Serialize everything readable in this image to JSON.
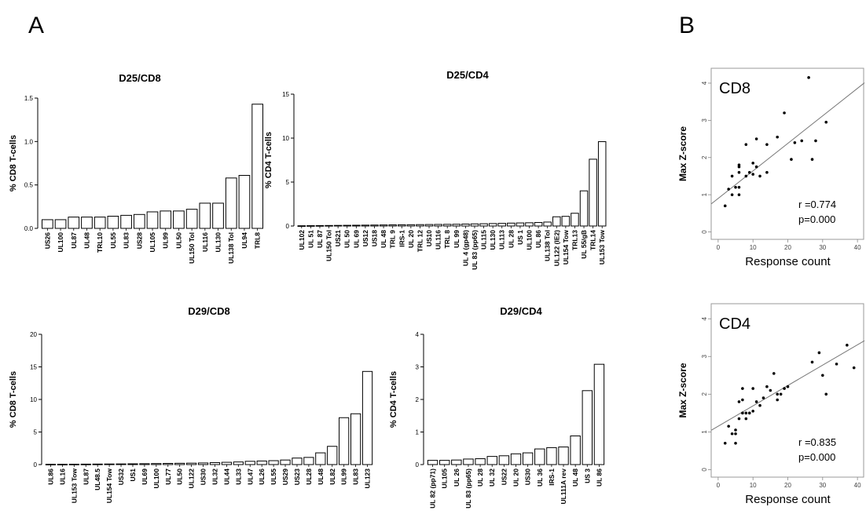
{
  "panels": {
    "a": "A",
    "b": "B"
  },
  "chart_data": [
    {
      "type": "bar",
      "title": "D25/CD8",
      "ylabel": "% CD8 T-cells",
      "xlabel": "",
      "ylim": [
        0,
        1.5
      ],
      "yticks": [
        "0.0",
        "0.5",
        "1.0",
        "1.5"
      ],
      "ytick_values": [
        0,
        0.5,
        1.0,
        1.5
      ],
      "categories": [
        "US26",
        "UL100",
        "UL87",
        "UL48",
        "TRL10",
        "UL55",
        "UL83",
        "US28",
        "UL105",
        "UL99",
        "UL50",
        "UL150 Tol",
        "UL116",
        "UL130",
        "UL138 Tol",
        "UL94",
        "TRL8"
      ],
      "values": [
        0.1,
        0.1,
        0.13,
        0.13,
        0.13,
        0.14,
        0.15,
        0.16,
        0.19,
        0.2,
        0.2,
        0.22,
        0.29,
        0.29,
        0.58,
        0.61,
        1.43
      ]
    },
    {
      "type": "bar",
      "title": "D25/CD4",
      "ylabel": "% CD4 T-cells",
      "xlabel": "",
      "ylim": [
        0,
        15
      ],
      "yticks": [
        "0",
        "5",
        "10",
        "15"
      ],
      "ytick_values": [
        0,
        5,
        10,
        15
      ],
      "categories": [
        "UL102",
        "UL 51",
        "UL 87",
        "UL150 Tol",
        "US21",
        "UL 50",
        "UL 69",
        "US12",
        "US18",
        "UL 48",
        "TRL 9",
        "IRS-1",
        "UL 20",
        "TRL 12",
        "US10",
        "UL116",
        "TRL 8",
        "UL 99",
        "UL 4 (gp48)",
        "UL 83 (pp65)",
        "UL115",
        "UL130",
        "UL113",
        "UL 28",
        "US 1",
        "UL100",
        "UL 86",
        "UL138 Tol",
        "UL122 (IE2)",
        "UL154 Tow",
        "TRL13",
        "UL 55/gB",
        "TRL14",
        "UL153 Tow"
      ],
      "values": [
        0.03,
        0.04,
        0.05,
        0.06,
        0.07,
        0.08,
        0.09,
        0.1,
        0.11,
        0.12,
        0.13,
        0.14,
        0.15,
        0.16,
        0.17,
        0.18,
        0.19,
        0.2,
        0.22,
        0.24,
        0.26,
        0.28,
        0.3,
        0.33,
        0.35,
        0.37,
        0.4,
        0.45,
        1.05,
        1.1,
        1.45,
        4.0,
        7.6,
        9.6
      ]
    },
    {
      "type": "bar",
      "title": "D29/CD8",
      "ylabel": "% CD8 T-cells",
      "xlabel": "",
      "ylim": [
        0,
        20
      ],
      "yticks": [
        "0",
        "5",
        "10",
        "15",
        "20"
      ],
      "ytick_values": [
        0,
        5,
        10,
        15,
        20
      ],
      "categories": [
        "UL86",
        "UL16",
        "UL153 Tow",
        "UL87",
        "UL48.5",
        "UL154 Tow",
        "US32",
        "US1",
        "UL69",
        "UL100",
        "UL77",
        "UL50",
        "UL122",
        "US30",
        "UL32",
        "UL44",
        "UL33",
        "UL47",
        "UL26",
        "UL55",
        "US29",
        "US23",
        "UL28",
        "UL48",
        "UL82",
        "UL99",
        "UL83",
        "UL123"
      ],
      "values": [
        0.05,
        0.05,
        0.06,
        0.07,
        0.08,
        0.09,
        0.1,
        0.12,
        0.14,
        0.16,
        0.18,
        0.2,
        0.22,
        0.25,
        0.3,
        0.35,
        0.4,
        0.5,
        0.55,
        0.6,
        0.7,
        1.0,
        1.1,
        1.8,
        2.8,
        7.2,
        7.8,
        14.3
      ]
    },
    {
      "type": "bar",
      "title": "D29/CD4",
      "ylabel": "% CD4 T-cells",
      "xlabel": "",
      "ylim": [
        0,
        4
      ],
      "yticks": [
        "0",
        "1",
        "2",
        "3",
        "4"
      ],
      "ytick_values": [
        0,
        1,
        2,
        3,
        4
      ],
      "categories": [
        "UL 82 (pp71)",
        "UL105",
        "UL 26",
        "UL 83 (pp65)",
        "UL 28",
        "UL 32",
        "US22",
        "UL 20",
        "US30",
        "UL 36",
        "IRS-1",
        "UL111A rev",
        "UL 48",
        "US 3",
        "UL 86"
      ],
      "values": [
        0.13,
        0.13,
        0.14,
        0.17,
        0.18,
        0.25,
        0.27,
        0.33,
        0.36,
        0.48,
        0.52,
        0.54,
        0.88,
        2.27,
        3.08
      ]
    },
    {
      "type": "scatter",
      "label": "CD8",
      "xlabel": "Response count",
      "ylabel": "Max Z-score",
      "xlim": [
        -2,
        42
      ],
      "ylim": [
        -0.2,
        4.4
      ],
      "xticks": [
        "0",
        "10",
        "20",
        "30",
        "40"
      ],
      "xtick_values": [
        0,
        10,
        20,
        30,
        40
      ],
      "yticks": [
        "0",
        "1",
        "2",
        "3",
        "4"
      ],
      "ytick_values": [
        0,
        1,
        2,
        3,
        4
      ],
      "r": "r =0.774",
      "p": "p=0.000",
      "fit": {
        "intercept": 0.9,
        "slope": 0.074
      },
      "x": [
        2,
        3,
        4,
        4,
        5,
        6,
        6,
        6,
        6,
        6,
        8,
        8,
        9,
        10,
        10,
        11,
        11,
        12,
        14,
        14,
        17,
        19,
        21,
        22,
        24,
        26,
        27,
        28,
        31
      ],
      "y": [
        0.7,
        1.15,
        1.0,
        1.5,
        1.2,
        1.75,
        1.8,
        1.6,
        1.2,
        1.0,
        1.5,
        2.35,
        1.6,
        1.85,
        1.55,
        2.5,
        1.75,
        1.5,
        2.35,
        1.6,
        2.55,
        3.2,
        1.95,
        2.4,
        2.45,
        4.15,
        1.95,
        2.45,
        2.95
      ]
    },
    {
      "type": "scatter",
      "label": "CD4",
      "xlabel": "Response count",
      "ylabel": "Max Z-score",
      "xlim": [
        -2,
        42
      ],
      "ylim": [
        -0.2,
        4.4
      ],
      "xticks": [
        "0",
        "10",
        "20",
        "30",
        "40"
      ],
      "xtick_values": [
        0,
        10,
        20,
        30,
        40
      ],
      "yticks": [
        "0",
        "1",
        "2",
        "3",
        "4"
      ],
      "ytick_values": [
        0,
        1,
        2,
        3,
        4
      ],
      "r": "r =0.835",
      "p": "p=0.000",
      "fit": {
        "intercept": 1.15,
        "slope": 0.054
      },
      "x": [
        2,
        3,
        4,
        5,
        5,
        5,
        6,
        6,
        7,
        7,
        7,
        8,
        8,
        9,
        10,
        10,
        11,
        12,
        13,
        14,
        15,
        16,
        17,
        17,
        18,
        19,
        20,
        27,
        29,
        30,
        31,
        34,
        37,
        39
      ],
      "y": [
        0.7,
        1.15,
        0.95,
        1.05,
        0.95,
        0.7,
        1.35,
        1.8,
        2.15,
        1.85,
        1.5,
        1.35,
        1.5,
        1.5,
        1.55,
        2.15,
        1.8,
        1.7,
        1.9,
        2.2,
        2.1,
        2.55,
        2.0,
        1.85,
        2.0,
        2.15,
        2.2,
        2.85,
        3.1,
        2.5,
        2.0,
        2.8,
        3.3,
        2.7
      ]
    }
  ]
}
